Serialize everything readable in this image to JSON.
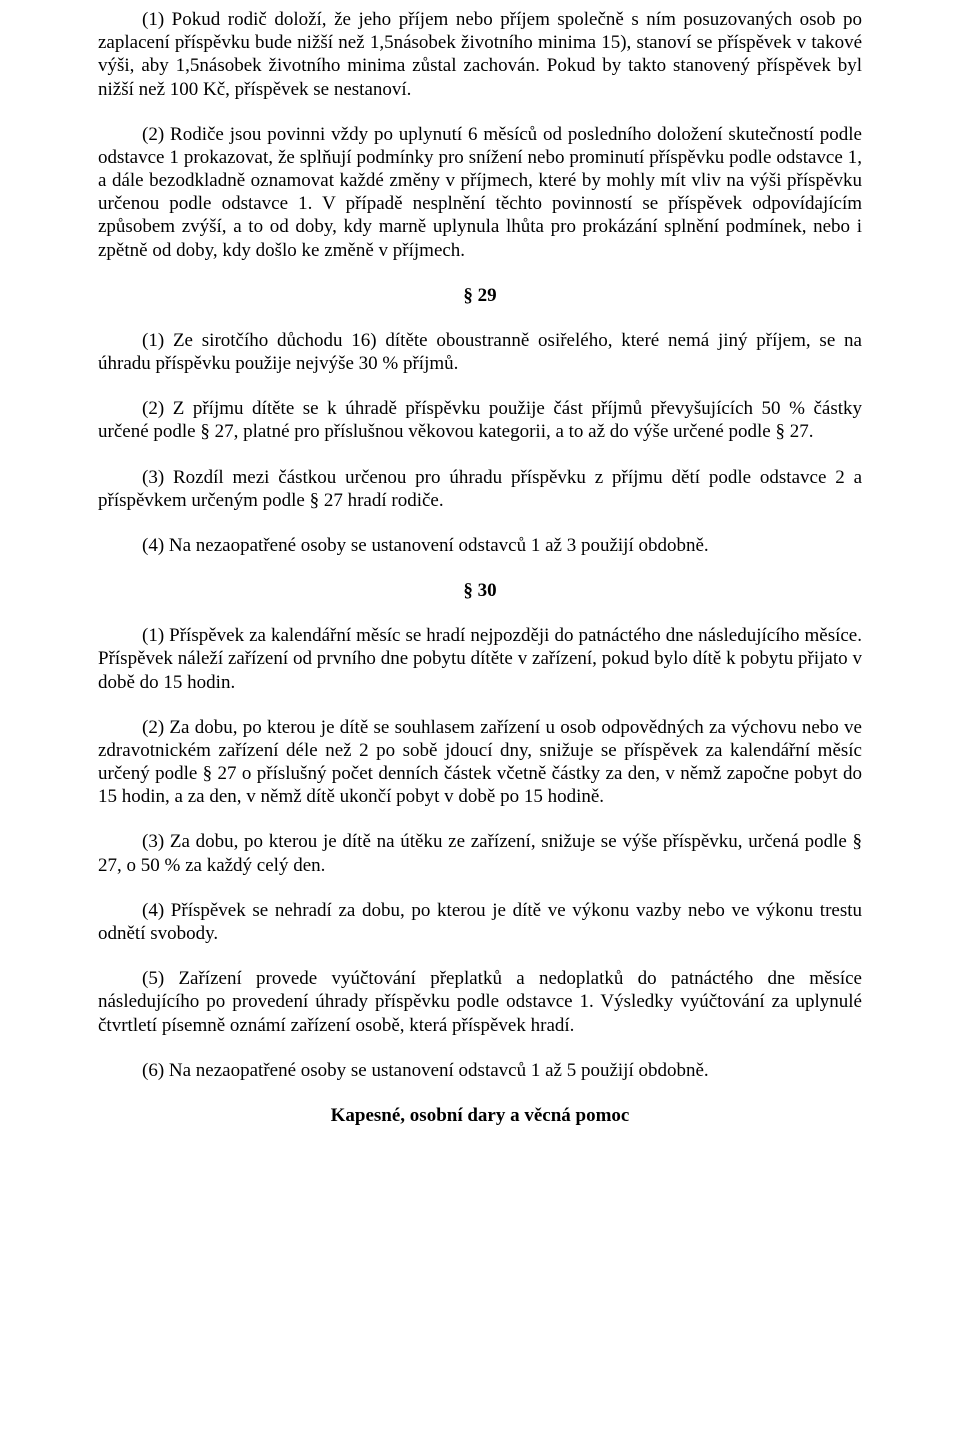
{
  "p1": "(1) Pokud rodič doloží, že jeho příjem nebo příjem společně s ním posuzovaných osob po zaplacení příspěvku bude nižší než 1,5násobek životního minima 15), stanoví se příspěvek v takové výši, aby 1,5násobek životního minima zůstal zachován. Pokud by takto stanovený příspěvek byl nižší než 100 Kč, příspěvek se nestanoví.",
  "p2": "(2) Rodiče jsou povinni vždy po uplynutí 6 měsíců od posledního doložení skutečností podle odstavce 1 prokazovat, že splňují podmínky pro snížení nebo prominutí příspěvku podle odstavce 1, a dále bezodkladně oznamovat každé změny v příjmech, které by mohly mít vliv na výši příspěvku určenou podle odstavce 1. V případě nesplnění těchto povinností se příspěvek odpovídajícím způsobem zvýší, a to od doby, kdy marně uplynula lhůta pro prokázání splnění podmínek, nebo i zpětně od doby, kdy došlo ke změně v příjmech.",
  "s29": "§ 29",
  "p29_1": "(1) Ze sirotčího důchodu 16) dítěte oboustranně osiřelého, které nemá jiný příjem, se na úhradu příspěvku použije nejvýše 30 % příjmů.",
  "p29_2": "(2) Z příjmu dítěte se k úhradě příspěvku použije část příjmů převyšujících 50 % částky určené podle § 27, platné pro příslušnou věkovou kategorii, a to až do výše určené podle § 27.",
  "p29_3": "(3) Rozdíl mezi částkou určenou pro úhradu příspěvku z příjmu dětí podle odstavce 2 a příspěvkem určeným podle § 27 hradí rodiče.",
  "p29_4": "(4) Na nezaopatřené osoby se ustanovení odstavců 1 až 3 použijí obdobně.",
  "s30": "§ 30",
  "p30_1": "(1) Příspěvek za kalendářní měsíc se hradí nejpozději do patnáctého dne následujícího měsíce. Příspěvek náleží zařízení od prvního dne pobytu dítěte v zařízení, pokud bylo dítě k pobytu přijato v době do 15 hodin.",
  "p30_2": "(2) Za dobu, po kterou je dítě se souhlasem zařízení u osob odpovědných za výchovu nebo ve zdravotnickém zařízení déle než 2 po sobě jdoucí dny, snižuje se příspěvek za kalendářní měsíc určený podle § 27 o příslušný počet denních částek včetně částky za den, v němž započne pobyt do 15 hodin, a za den, v němž dítě ukončí pobyt v době po 15 hodině.",
  "p30_3": "(3) Za dobu, po kterou je dítě na útěku ze zařízení, snižuje se výše příspěvku, určená podle § 27, o 50 % za každý celý den.",
  "p30_4": "(4) Příspěvek se nehradí za dobu, po kterou je dítě ve výkonu vazby nebo ve výkonu trestu odnětí svobody.",
  "p30_5": "(5) Zařízení provede vyúčtování přeplatků a nedoplatků do patnáctého dne měsíce následujícího po provedení úhrady příspěvku podle odstavce 1. Výsledky vyúčtování za uplynulé čtvrtletí písemně oznámí zařízení osobě, která příspěvek hradí.",
  "p30_6": "(6) Na nezaopatřené osoby se ustanovení odstavců 1 až 5 použijí obdobně.",
  "heading": "Kapesné, osobní dary a věcná pomoc"
}
